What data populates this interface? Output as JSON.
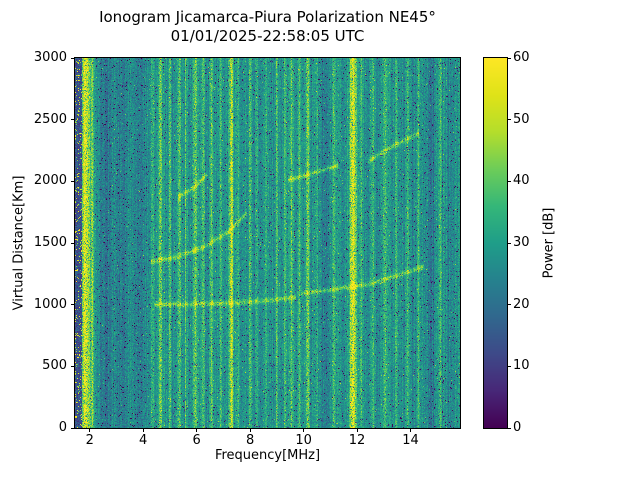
{
  "figure": {
    "background": "#ffffff"
  },
  "chart_data": {
    "type": "heatmap",
    "title": "Ionogram Jicamarca-Piura Polarization NE45°",
    "subtitle": "01/01/2025-22:58:05 UTC",
    "xlabel": "Frequency[MHz]",
    "ylabel": "Virtual Distance[Km]",
    "colorbar_label": "Power [dB]",
    "colormap": "viridis",
    "grid": false,
    "xlim": [
      1.45,
      15.85
    ],
    "ylim": [
      0,
      3000
    ],
    "clim": [
      0,
      60
    ],
    "x_ticks": [
      2,
      4,
      6,
      8,
      10,
      12,
      14
    ],
    "y_ticks": [
      0,
      500,
      1000,
      1500,
      2000,
      2500,
      3000
    ],
    "colorbar_ticks": [
      0,
      10,
      20,
      30,
      40,
      50,
      60
    ],
    "background_power_db": 27.5,
    "noise_db": 5.5,
    "rfi_lines": [
      {
        "f": 1.85,
        "w": 0.28,
        "p": 30
      },
      {
        "f": 2.1,
        "w": 0.1,
        "p": 16
      },
      {
        "f": 2.6,
        "w": 0.35,
        "p": -7
      },
      {
        "f": 3.2,
        "w": 0.4,
        "p": -6
      },
      {
        "f": 3.85,
        "w": 0.3,
        "p": -7
      },
      {
        "f": 4.35,
        "w": 0.1,
        "p": 10
      },
      {
        "f": 4.65,
        "w": 0.12,
        "p": 18
      },
      {
        "f": 5.0,
        "w": 0.1,
        "p": 12
      },
      {
        "f": 5.35,
        "w": 0.12,
        "p": 15
      },
      {
        "f": 5.6,
        "w": 0.08,
        "p": 9
      },
      {
        "f": 5.95,
        "w": 0.12,
        "p": 18
      },
      {
        "f": 6.25,
        "w": 0.1,
        "p": 12
      },
      {
        "f": 6.55,
        "w": 0.1,
        "p": 14
      },
      {
        "f": 6.9,
        "w": 0.08,
        "p": 10
      },
      {
        "f": 7.3,
        "w": 0.14,
        "p": 24
      },
      {
        "f": 7.55,
        "w": 0.08,
        "p": 11
      },
      {
        "f": 8.0,
        "w": 0.1,
        "p": 14
      },
      {
        "f": 8.25,
        "w": 0.08,
        "p": 9
      },
      {
        "f": 8.6,
        "w": 0.08,
        "p": 8
      },
      {
        "f": 9.0,
        "w": 0.1,
        "p": 12
      },
      {
        "f": 9.3,
        "w": 0.08,
        "p": 9
      },
      {
        "f": 9.55,
        "w": 0.1,
        "p": 16
      },
      {
        "f": 9.85,
        "w": 0.08,
        "p": 10
      },
      {
        "f": 10.15,
        "w": 0.12,
        "p": 18
      },
      {
        "f": 10.5,
        "w": 0.08,
        "p": 9
      },
      {
        "f": 10.8,
        "w": 0.3,
        "p": -6
      },
      {
        "f": 11.15,
        "w": 0.1,
        "p": 12
      },
      {
        "f": 11.85,
        "w": 0.22,
        "p": 30
      },
      {
        "f": 12.15,
        "w": 0.08,
        "p": 12
      },
      {
        "f": 12.6,
        "w": 0.1,
        "p": 12
      },
      {
        "f": 13.05,
        "w": 0.1,
        "p": 14
      },
      {
        "f": 13.45,
        "w": 0.08,
        "p": 10
      },
      {
        "f": 13.9,
        "w": 0.1,
        "p": 12
      },
      {
        "f": 14.3,
        "w": 0.08,
        "p": 9
      },
      {
        "f": 14.75,
        "w": 0.25,
        "p": -6
      },
      {
        "f": 15.1,
        "w": 0.1,
        "p": 10
      }
    ],
    "echo_traces": [
      {
        "name": "echo-1000km",
        "points": [
          [
            4.4,
            1000
          ],
          [
            6.0,
            1005
          ],
          [
            7.5,
            1015
          ],
          [
            8.8,
            1035
          ],
          [
            9.7,
            1060
          ]
        ]
      },
      {
        "name": "echo-1100-1300km",
        "points": [
          [
            9.9,
            1090
          ],
          [
            11.0,
            1120
          ],
          [
            12.3,
            1160
          ],
          [
            13.3,
            1220
          ],
          [
            14.5,
            1310
          ]
        ]
      },
      {
        "name": "f-trace-main",
        "points": [
          [
            4.3,
            1350
          ],
          [
            5.3,
            1390
          ],
          [
            6.3,
            1470
          ],
          [
            7.2,
            1590
          ],
          [
            7.9,
            1750
          ]
        ]
      },
      {
        "name": "f-trace-upper",
        "points": [
          [
            5.3,
            1870
          ],
          [
            5.9,
            1950
          ],
          [
            6.4,
            2060
          ]
        ]
      },
      {
        "name": "echo-2050km",
        "points": [
          [
            9.4,
            2010
          ],
          [
            10.3,
            2060
          ],
          [
            11.3,
            2130
          ]
        ]
      },
      {
        "name": "echo-2200-2400km",
        "points": [
          [
            12.4,
            2160
          ],
          [
            13.3,
            2280
          ],
          [
            14.3,
            2390
          ]
        ]
      }
    ]
  }
}
